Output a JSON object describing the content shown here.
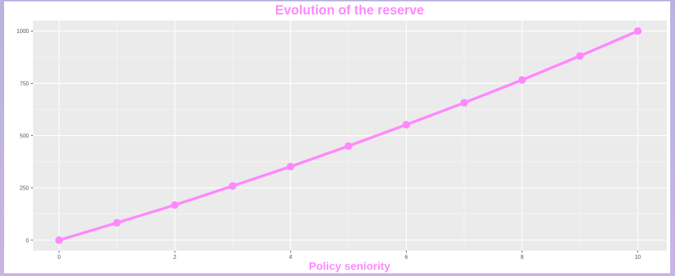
{
  "chart_data": {
    "type": "line",
    "title": "Evolution of the reserve",
    "xlabel": "Policy seniority",
    "ylabel": "",
    "x": [
      0,
      1,
      2,
      3,
      4,
      5,
      6,
      7,
      8,
      9,
      10
    ],
    "series": [
      {
        "values": [
          0,
          83,
          168,
          259,
          352,
          450,
          552,
          657,
          766,
          881,
          1000
        ]
      }
    ],
    "xlim": [
      -0.45,
      10.5
    ],
    "ylim": [
      -50,
      1050
    ],
    "x_ticks": [
      0,
      2,
      4,
      6,
      8,
      10
    ],
    "x_tick_labels": [
      "0",
      "2",
      "4",
      "6",
      "8",
      "10"
    ],
    "y_ticks": [
      0,
      250,
      500,
      750,
      1000
    ],
    "y_tick_labels": [
      "0",
      "250",
      "500",
      "750",
      "1000"
    ],
    "grid": true,
    "legend": "none",
    "colors": {
      "series": "#ff88ff",
      "title": "#ff88ff",
      "panel": "#ebebeb",
      "grid": "#ffffff",
      "background": "#ffffff"
    }
  }
}
